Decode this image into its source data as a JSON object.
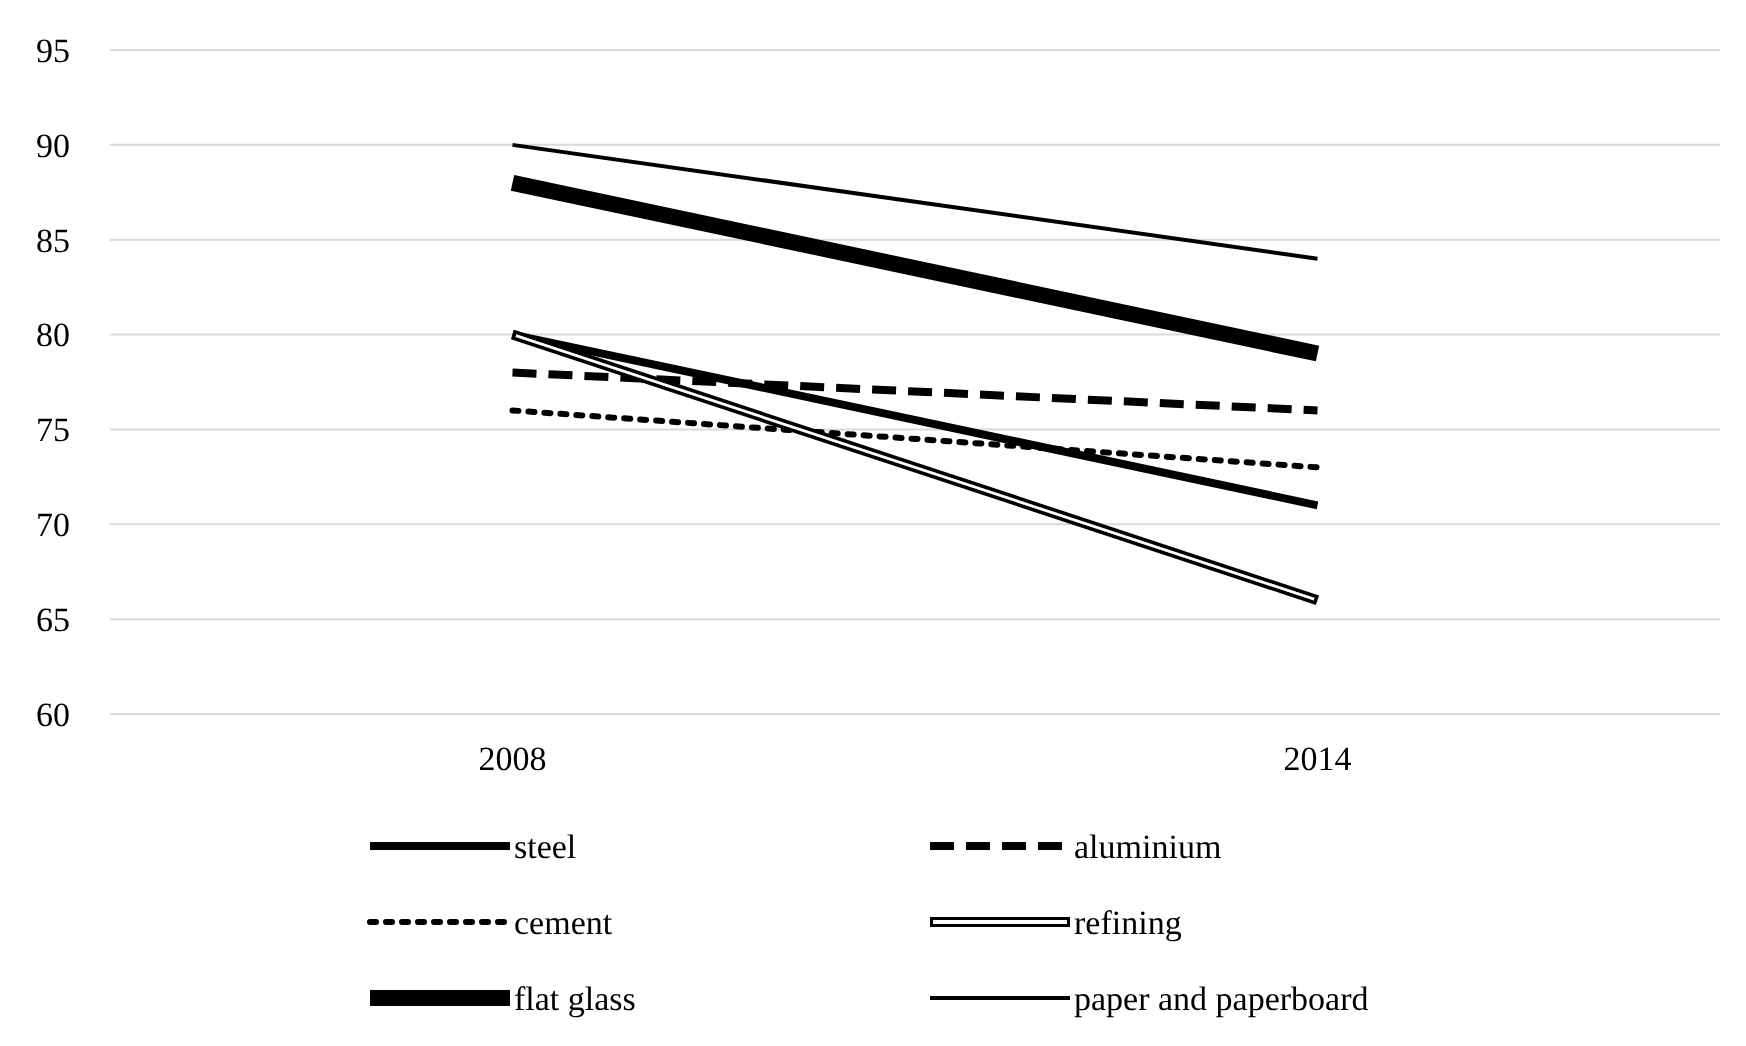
{
  "chart_data": {
    "type": "line",
    "categories": [
      "2008",
      "2014"
    ],
    "series": [
      {
        "name": "steel",
        "color": "#000000",
        "values": [
          80,
          71
        ],
        "line_style": "solid"
      },
      {
        "name": "aluminium",
        "color": "#000000",
        "values": [
          78,
          76
        ],
        "line_style": "dashed"
      },
      {
        "name": "cement",
        "color": "#000000",
        "values": [
          76,
          73
        ],
        "line_style": "dotted"
      },
      {
        "name": "refining",
        "color": "#000000",
        "values": [
          80,
          66
        ],
        "line_style": "solid"
      },
      {
        "name": "flat glass",
        "color": "#000000",
        "values": [
          88,
          79
        ],
        "line_style": "solid"
      },
      {
        "name": "paper and paperboard",
        "color": "#000000",
        "values": [
          90,
          84
        ],
        "line_style": "solid"
      }
    ],
    "ylim": [
      60,
      95
    ],
    "yticks": [
      60,
      65,
      70,
      75,
      80,
      85,
      90,
      95
    ],
    "grid": "y",
    "legend": "bottom"
  }
}
